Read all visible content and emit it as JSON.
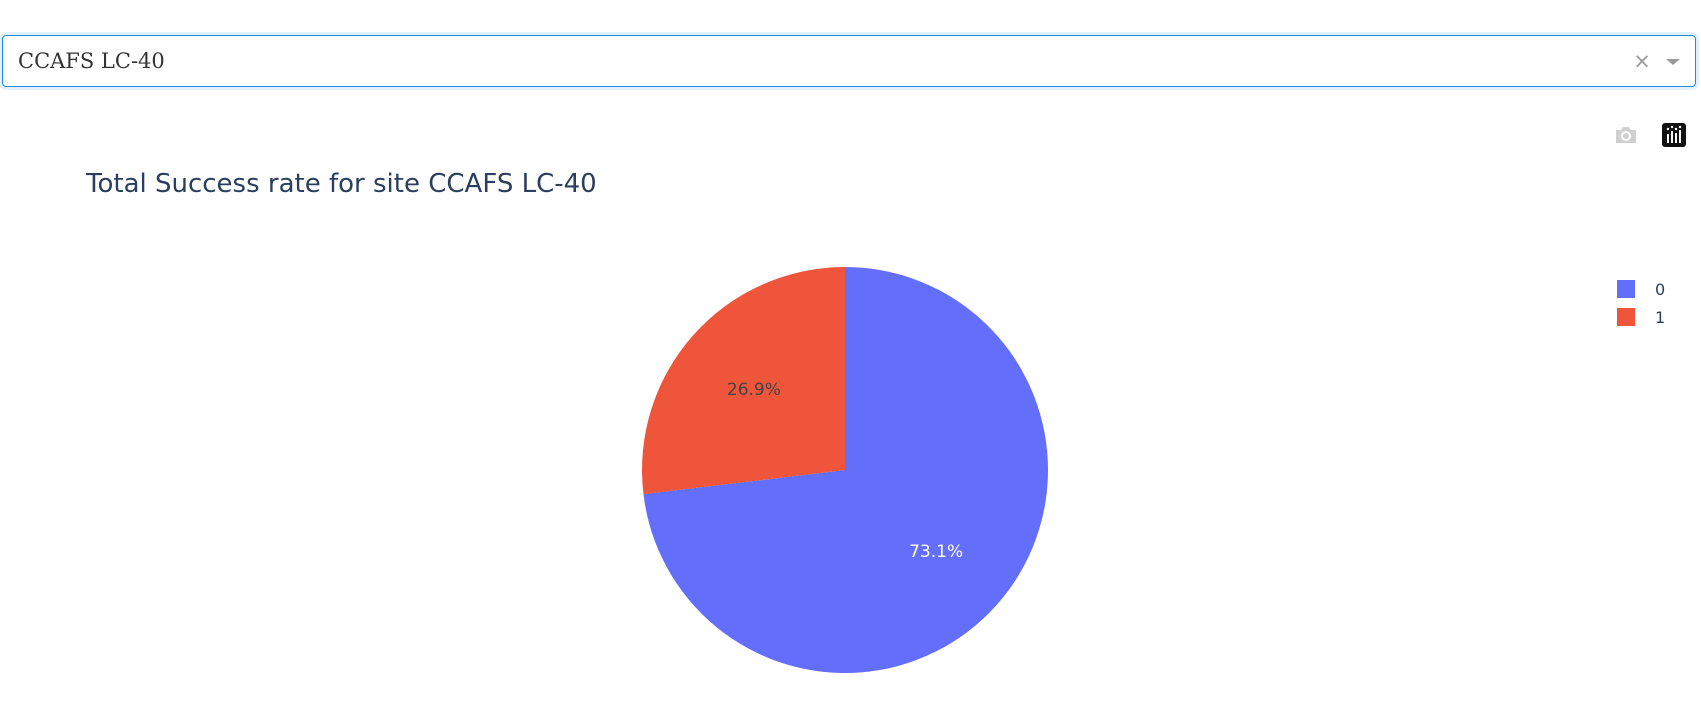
{
  "dropdown": {
    "selected_value": "CCAFS LC-40",
    "clear_glyph": "×"
  },
  "modebar": {
    "buttons": [
      {
        "icon": "camera-icon"
      },
      {
        "icon": "plotly-logo-icon"
      }
    ]
  },
  "colors": {
    "accent_border": "#1a8be6",
    "series_0": "#636efa",
    "series_1": "#ef553b",
    "title": "#2a3f5f"
  },
  "chart_data": {
    "type": "pie",
    "title": "Total Success rate for site CCAFS LC-40",
    "labels": [
      "0",
      "1"
    ],
    "values": [
      73.1,
      26.9
    ],
    "percent_labels": [
      "73.1%",
      "26.9%"
    ],
    "colors": [
      "#636efa",
      "#ef553b"
    ],
    "label_colors": [
      "#ffffff",
      "#444444"
    ],
    "legend": {
      "placement": "top-right",
      "entries": [
        "0",
        "1"
      ]
    },
    "direction": "clockwise",
    "start": "12 o'clock"
  }
}
